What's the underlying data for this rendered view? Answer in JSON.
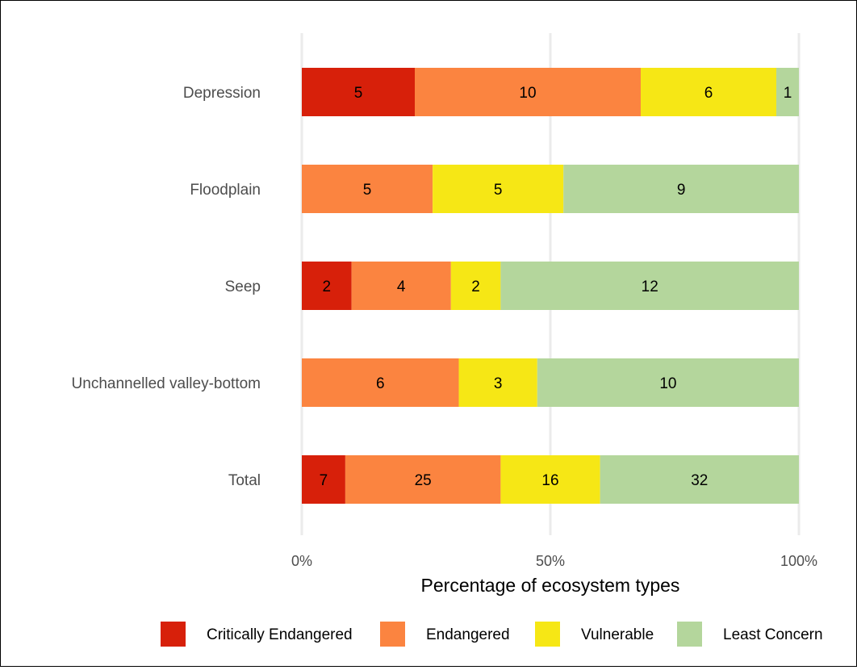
{
  "chart_data": {
    "type": "bar",
    "orientation": "horizontal",
    "stacked": "percent",
    "categories": [
      "Depression",
      "Floodplain",
      "Seep",
      "Unchannelled valley-bottom",
      "Total"
    ],
    "series": [
      {
        "name": "Critically Endangered",
        "color": "#d7200a",
        "values": [
          5,
          0,
          2,
          0,
          7
        ]
      },
      {
        "name": "Endangered",
        "color": "#fb8440",
        "values": [
          10,
          5,
          4,
          6,
          25
        ]
      },
      {
        "name": "Vulnerable",
        "color": "#f6e715",
        "values": [
          6,
          5,
          2,
          3,
          16
        ]
      },
      {
        "name": "Least Concern",
        "color": "#b4d69c",
        "values": [
          1,
          9,
          12,
          10,
          32
        ]
      }
    ],
    "xlabel": "Percentage of ecosystem types",
    "ylabel": "",
    "xticks": [
      "0%",
      "50%",
      "100%"
    ],
    "xlim": [
      0,
      100
    ],
    "grid": "vertical major",
    "legend": "bottom"
  }
}
